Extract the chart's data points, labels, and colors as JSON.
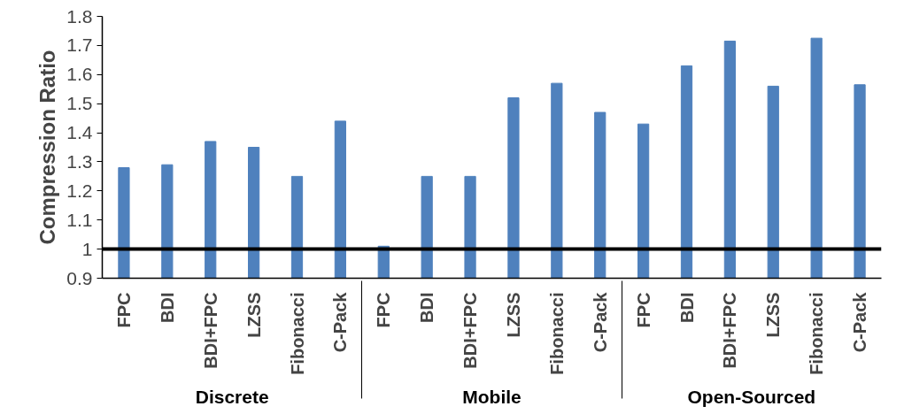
{
  "chart_data": {
    "type": "bar",
    "ylabel": "Compression Ratio",
    "categories": [
      "FPC",
      "BDI",
      "BDI+FPC",
      "LZSS",
      "Fibonacci",
      "C-Pack",
      "FPC",
      "BDI",
      "BDI+FPC",
      "LZSS",
      "Fibonacci",
      "C-Pack",
      "FPC",
      "BDI",
      "BDI+FPC",
      "LZSS",
      "Fibonacci",
      "C-Pack"
    ],
    "values": [
      1.28,
      1.29,
      1.37,
      1.35,
      1.25,
      1.44,
      1.01,
      1.25,
      1.25,
      1.52,
      1.57,
      1.47,
      1.43,
      1.63,
      1.715,
      1.56,
      1.725,
      1.565
    ],
    "color": "#4f81bd",
    "ylim": [
      0.9,
      1.8
    ],
    "yticks": [
      0.9,
      1,
      1.1,
      1.2,
      1.3,
      1.4,
      1.5,
      1.6,
      1.7,
      1.8
    ],
    "ref_lines": [
      {
        "axis": "y",
        "value": 1,
        "color": "#000000"
      }
    ],
    "annotations": [
      "Discrete",
      "Mobile",
      "Open-Sourced"
    ]
  }
}
